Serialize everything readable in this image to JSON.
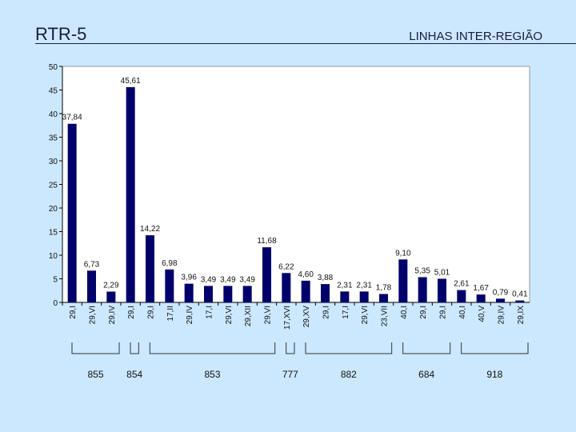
{
  "slide": {
    "title": "RTR-5",
    "subtitle": "LINHAS INTER-REGIÃO"
  },
  "colors": {
    "background": "#cce8ff",
    "plot_area": "#ffffff",
    "bar": "#00006b",
    "text": "#1a1a40"
  },
  "chart_data": {
    "type": "bar",
    "title": "",
    "xlabel": "",
    "ylabel": "",
    "ylim": [
      0,
      50
    ],
    "yticks": [
      0,
      5,
      10,
      15,
      20,
      25,
      30,
      35,
      40,
      45,
      50
    ],
    "grid": false,
    "legend": "none",
    "categories": [
      "29,I",
      "29,VI",
      "29,IV",
      "29,I",
      "29,I",
      "17,II",
      "29,IV",
      "17,I",
      "29,VI",
      "29,XII",
      "29,VI",
      "17,XVI",
      "29,XV",
      "29,I",
      "17,I",
      "29,VI",
      "23,VII",
      "40,I",
      "29,I",
      "29,I",
      "40,I",
      "40,V",
      "29,IV",
      "29,IX"
    ],
    "values": [
      37.84,
      6.73,
      2.29,
      45.61,
      14.22,
      6.98,
      3.96,
      3.49,
      3.49,
      3.49,
      11.68,
      6.22,
      4.6,
      3.88,
      2.31,
      2.31,
      1.78,
      9.1,
      5.35,
      5.01,
      2.61,
      1.67,
      0.79,
      0.41
    ],
    "data_labels": [
      "37,84",
      "6,73",
      "2,29",
      "45,61",
      "14,22",
      "6,98",
      "3,96",
      "3,49",
      "3,49",
      "3,49",
      "11,68",
      "6,22",
      "4,60",
      "3,88",
      "2,31",
      "2,31",
      "1,78",
      "9,10",
      "5,35",
      "5,01",
      "2,61",
      "1,67",
      "0,79",
      "0,41"
    ],
    "groups": [
      {
        "label": "855",
        "first": 0,
        "last": 2
      },
      {
        "label": "854",
        "first": 3,
        "last": 3
      },
      {
        "label": "853",
        "first": 4,
        "last": 10
      },
      {
        "label": "777",
        "first": 11,
        "last": 11
      },
      {
        "label": "882",
        "first": 12,
        "last": 16
      },
      {
        "label": "684",
        "first": 17,
        "last": 19
      },
      {
        "label": "918",
        "first": 20,
        "last": 23
      }
    ]
  }
}
